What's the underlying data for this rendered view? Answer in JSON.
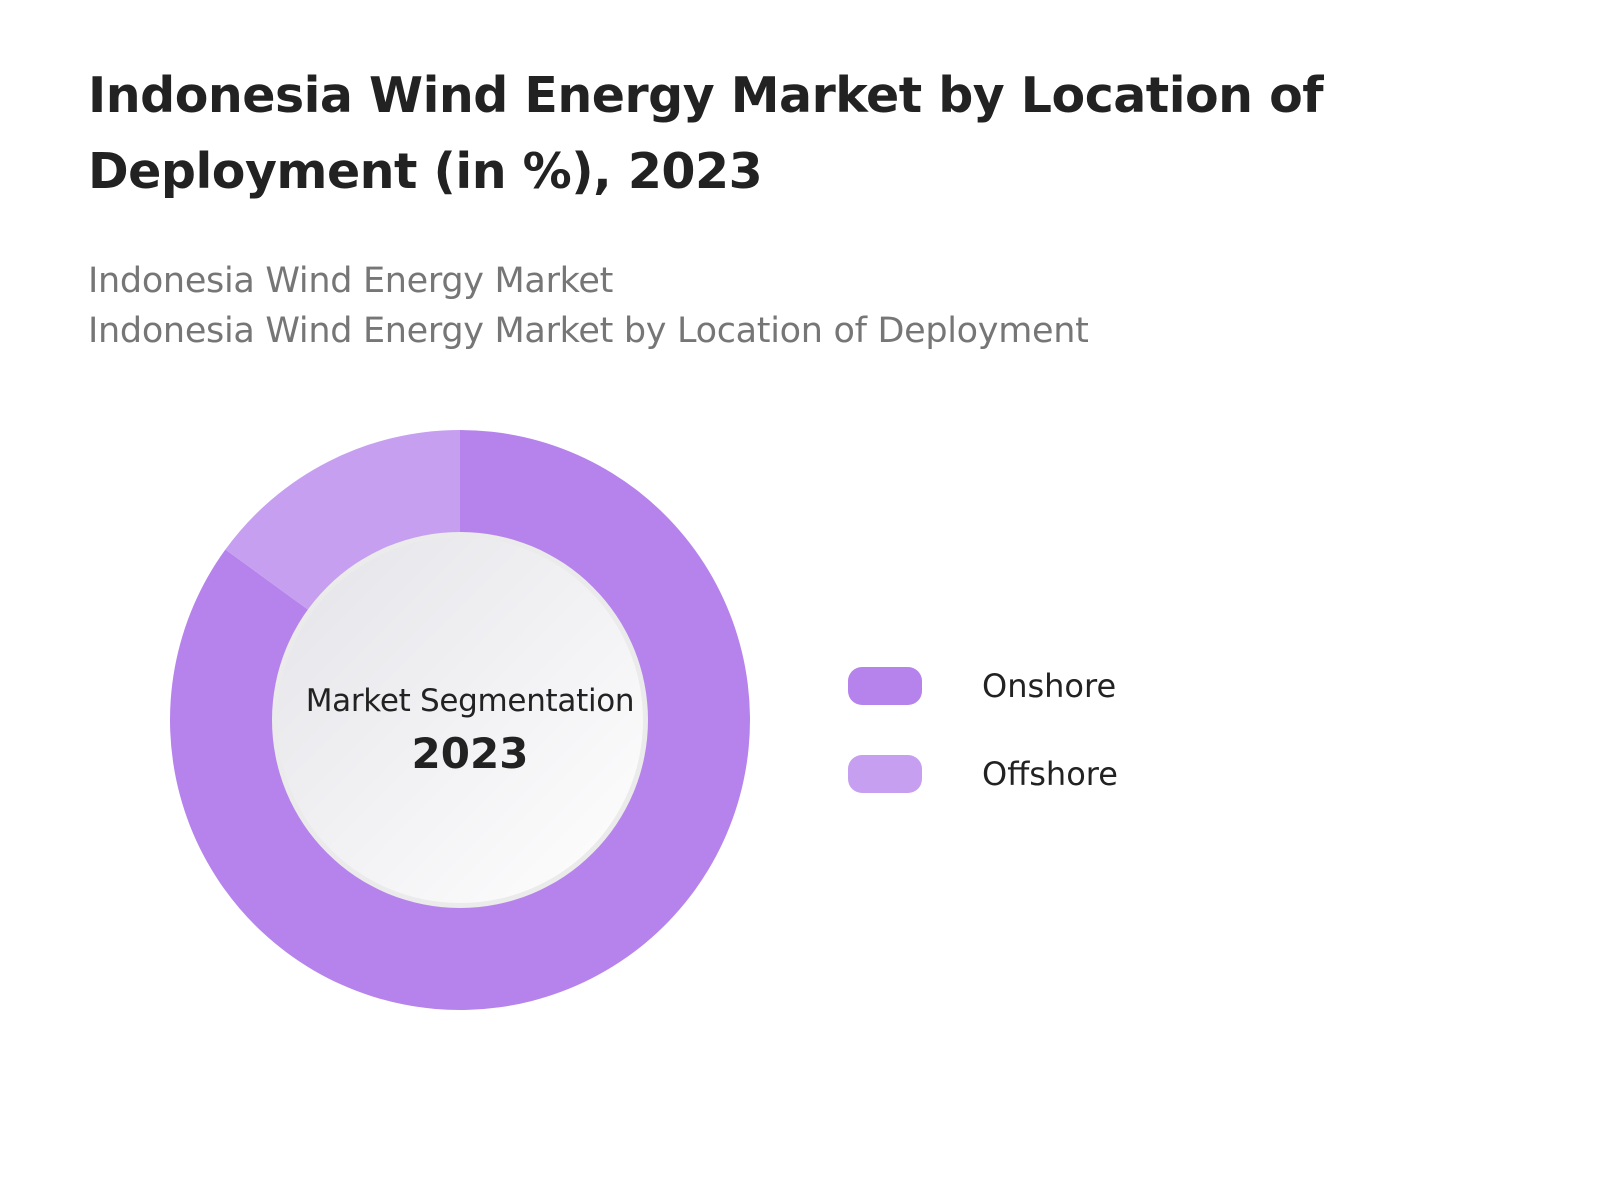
{
  "header": {
    "title": "Indonesia Wind Energy Market by Location of Deployment (in %), 2023",
    "subtitle_line1": "Indonesia Wind Energy Market",
    "subtitle_line2": "Indonesia Wind Energy Market by Location of Deployment"
  },
  "center": {
    "caption": "Market Segmentation",
    "year": "2023"
  },
  "colors": {
    "onshore": "#b683ec",
    "offshore": "#c69ff0",
    "hole_light": "#ffffff",
    "hole_dark": "#e4e3e8"
  },
  "legend": {
    "items": [
      {
        "label": "Onshore"
      },
      {
        "label": "Offshore"
      }
    ]
  },
  "chart_data": {
    "type": "pie",
    "donut": true,
    "categories": [
      "Onshore",
      "Offshore"
    ],
    "values": [
      85,
      15
    ],
    "unit": "%",
    "title": "Indonesia Wind Energy Market by Location of Deployment (in %), 2023",
    "legend_position": "right"
  }
}
